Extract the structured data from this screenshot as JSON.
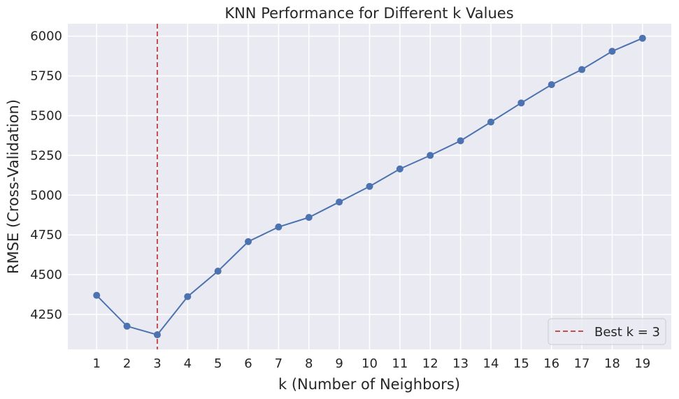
{
  "chart_data": {
    "type": "line",
    "title": "KNN Performance for Different k Values",
    "xlabel": "k (Number of Neighbors)",
    "ylabel": "RMSE (Cross-Validation)",
    "x": [
      1,
      2,
      3,
      4,
      5,
      6,
      7,
      8,
      9,
      10,
      11,
      12,
      13,
      14,
      15,
      16,
      17,
      18,
      19
    ],
    "series": [
      {
        "values": [
          4370,
          4176,
          4122,
          4362,
          4522,
          4708,
          4800,
          4860,
          4957,
          5055,
          5165,
          5250,
          5342,
          5460,
          5580,
          5695,
          5790,
          5905,
          5987
        ],
        "color": "#4c72b0",
        "marker": "circle"
      }
    ],
    "xlim": [
      0.05,
      19.95
    ],
    "ylim": [
      4030,
      6078
    ],
    "xticks": [
      "1",
      "2",
      "3",
      "4",
      "5",
      "6",
      "7",
      "8",
      "9",
      "10",
      "11",
      "12",
      "13",
      "14",
      "15",
      "16",
      "17",
      "18",
      "19"
    ],
    "yticks": [
      "4250",
      "4500",
      "4750",
      "5000",
      "5250",
      "5500",
      "5750",
      "6000"
    ],
    "best_line": {
      "x": 3,
      "color": "#c44e52",
      "style": "dashed"
    },
    "legend": {
      "entries": [
        "Best k = 3"
      ],
      "placement": "bottom-right"
    },
    "grid": true,
    "background": "#eaeaf2"
  }
}
